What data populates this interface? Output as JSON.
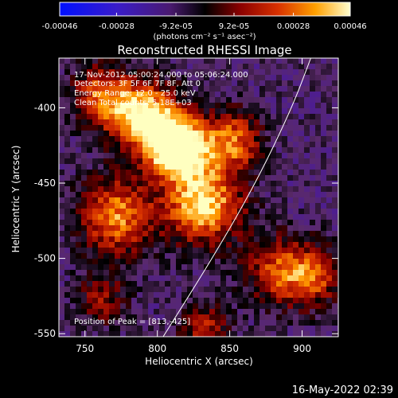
{
  "colorbar": {
    "ticks": [
      {
        "label": "-0.00046",
        "value": -0.00046
      },
      {
        "label": "-0.00028",
        "value": -0.00028
      },
      {
        "label": "-9.2e-05",
        "value": -9.2e-05
      },
      {
        "label": "9.2e-05",
        "value": 9.2e-05
      },
      {
        "label": "0.00028",
        "value": 0.00028
      },
      {
        "label": "0.00046",
        "value": 0.00046
      }
    ],
    "range": [
      -0.00046,
      0.00046
    ],
    "units_label": "(photons cm⁻² s⁻¹ asec⁻²)"
  },
  "chart_data": {
    "type": "heatmap",
    "title": "Reconstructed RHESSI Image",
    "xlabel": "Heliocentric X (arcsec)",
    "ylabel": "Heliocentric Y (arcsec)",
    "xlim": [
      732,
      925
    ],
    "ylim": [
      -552,
      -367
    ],
    "xticks": [
      750,
      800,
      850,
      900
    ],
    "yticks": [
      -400,
      -450,
      -500,
      -550
    ],
    "annotations": [
      "17-Nov-2012 05:00:24.000 to 05:06:24.000",
      "Detectors: 3F 5F 6F 7F 8F, Att 0",
      "Energy Range: 12.0 - 25.0 keV",
      "Clean    Total counts: 5.18E+03"
    ],
    "peak_label": "Position of Peak = [813,-425]",
    "peak": [
      813,
      -425
    ],
    "limb_curve": [
      [
        804,
        -552
      ],
      [
        838,
        -500
      ],
      [
        868,
        -450
      ],
      [
        893,
        -400
      ],
      [
        906,
        -367
      ]
    ]
  },
  "footer_timestamp": "16-May-2022 02:39",
  "colors": {
    "background": "#000000",
    "colormap": [
      "#0000ff",
      "#4a1a9a",
      "#5a2a6a",
      "#000000",
      "#8a0000",
      "#d63000",
      "#ff9a00",
      "#ffffc0"
    ]
  }
}
